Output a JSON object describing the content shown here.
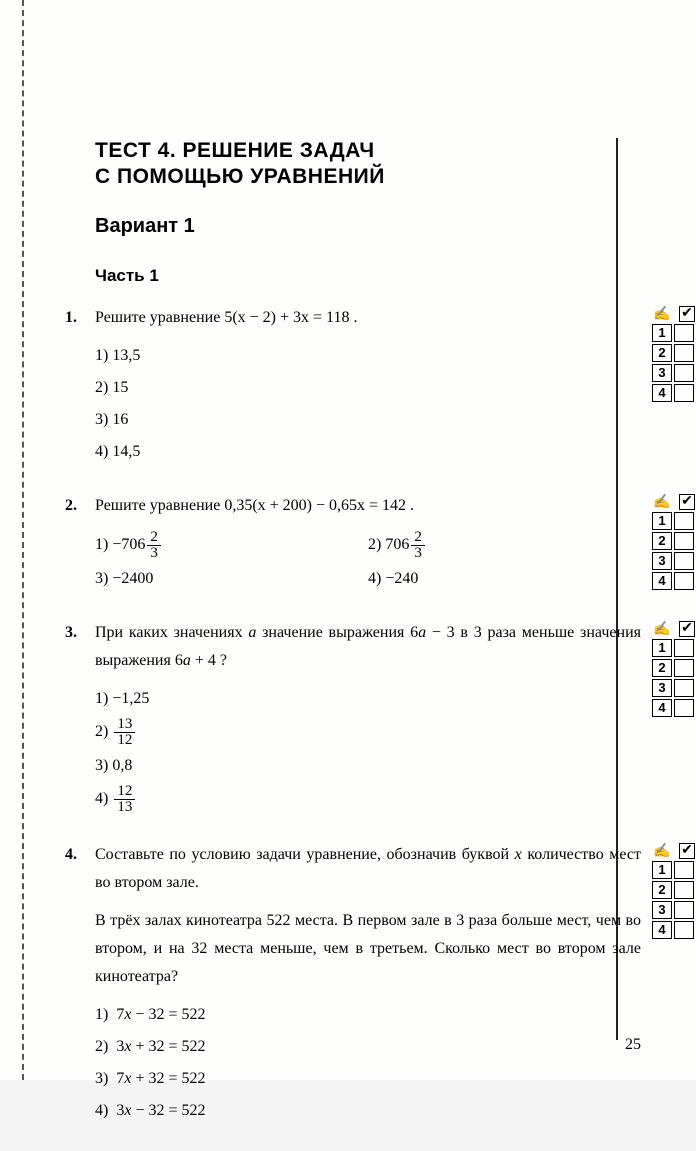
{
  "page_number": "25",
  "title_line1": "ТЕСТ 4. РЕШЕНИЕ ЗАДАЧ",
  "title_line2": "С ПОМОЩЬЮ УРАВНЕНИЙ",
  "variant": "Вариант 1",
  "part": "Часть 1",
  "answer_labels": [
    "1",
    "2",
    "3",
    "4"
  ],
  "checkmark": "✔",
  "pencil": "✍",
  "q1": {
    "num": "1.",
    "prompt_pre": "Решите уравнение ",
    "eq": "5(x − 2) + 3x = 118",
    "dot": " .",
    "o1": "1)  13,5",
    "o2": "2)  15",
    "o3": "3)  16",
    "o4": "4)  14,5"
  },
  "q2": {
    "num": "2.",
    "prompt_pre": "Решите уравнение ",
    "eq": "0,35(x + 200) − 0,65x = 142",
    "dot": " .",
    "o1_pre": "1)  −706",
    "o2_pre": "2)  706",
    "frac_num": "2",
    "frac_den": "3",
    "o3": "3)  −2400",
    "o4": "4)  −240"
  },
  "q3": {
    "num": "3.",
    "prompt_l1_a": "При  каких  значениях  ",
    "prompt_l1_b": "  значение  выражения  ",
    "expr1": "6a − 3",
    "prompt_l1_c": "  в",
    "prompt_l2_a": "3 раза меньше значения выражения ",
    "expr2": "6a + 4",
    "prompt_l2_b": " ?",
    "a_var": "a",
    "o1": "1)  −1,25",
    "o2_pre": "2)  ",
    "o2_num": "13",
    "o2_den": "12",
    "o3": "3)  0,8",
    "o4_pre": "4)  ",
    "o4_num": "12",
    "o4_den": "13"
  },
  "q4": {
    "num": "4.",
    "p1_a": "Составьте по условию задачи уравнение, обозначив бук­вой ",
    "p1_var": "x",
    "p1_b": " количество мест во втором зале.",
    "p2": "В трёх залах кинотеатра 522 места. В первом зале в 3 раза больше мест, чем во втором, и на 32 места меньше, чем в третьем. Сколько мест во втором зале кинотеатра?",
    "o1": "1)  7x − 32 = 522",
    "o2": "2)  3x + 32 = 522",
    "o3": "3)  7x + 32 = 522",
    "o4": "4)  3x − 32 = 522"
  }
}
